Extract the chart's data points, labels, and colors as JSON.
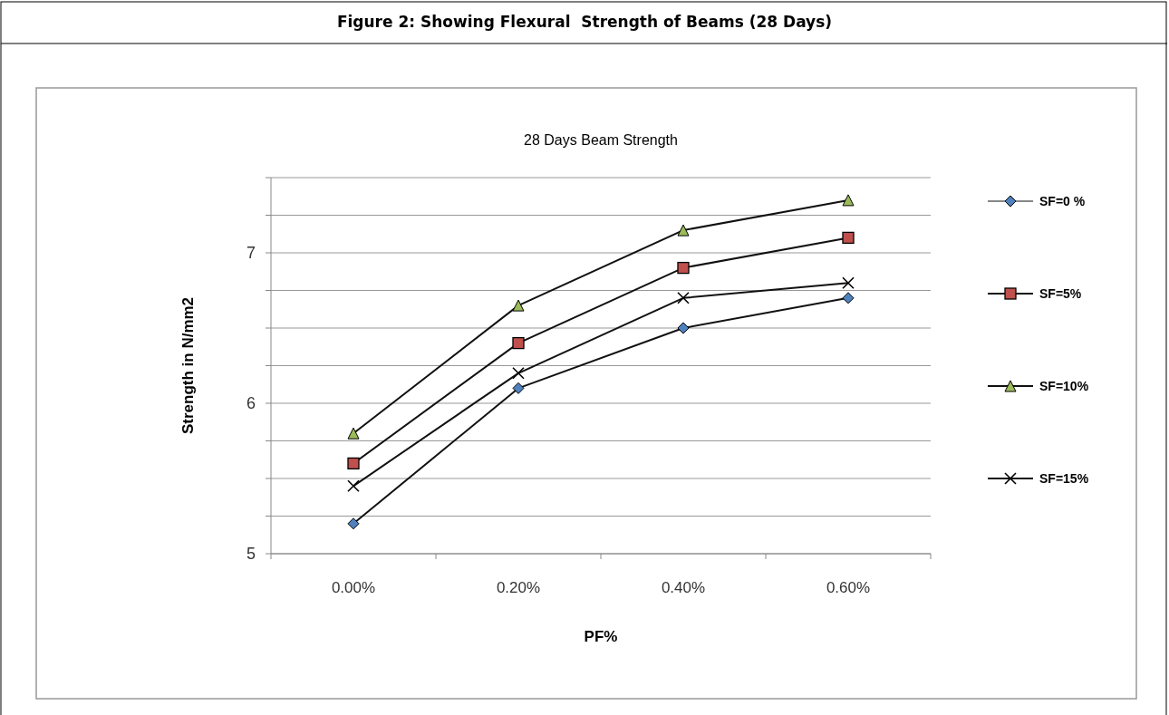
{
  "chart_data": {
    "type": "line",
    "title": "Figure 2: Showing Flexural  Strength of Beams (28 Days)",
    "subtitle": "28 Days Beam Strength",
    "xlabel": "PF%",
    "ylabel": "Strength in N/mm2",
    "categories": [
      "0.00%",
      "0.20%",
      "0.40%",
      "0.60%"
    ],
    "series": [
      {
        "name": "SF=0 %",
        "color": "#4f81bd",
        "marker": "diamond",
        "values": [
          5.2,
          6.1,
          6.5,
          6.7
        ]
      },
      {
        "name": "SF=5%",
        "color": "#c0504d",
        "marker": "square",
        "values": [
          5.6,
          6.4,
          6.9,
          7.1
        ]
      },
      {
        "name": "SF=10%",
        "color": "#9bbb59",
        "marker": "triangle",
        "values": [
          5.8,
          6.65,
          7.15,
          7.35
        ]
      },
      {
        "name": "SF=15%",
        "color": "#000000",
        "marker": "cross",
        "values": [
          5.45,
          6.2,
          6.7,
          6.8
        ]
      }
    ],
    "ylim": [
      5,
      7.5
    ],
    "yticks": [
      5,
      {
        "value": 5.25,
        "label": null
      },
      {
        "value": 5.5,
        "label": null
      },
      {
        "value": 5.75,
        "label": null
      },
      6,
      {
        "value": 6.25,
        "label": null
      },
      {
        "value": 6.5,
        "label": null
      },
      {
        "value": 6.75,
        "label": null
      },
      7,
      {
        "value": 7.25,
        "label": null
      },
      {
        "value": 7.5,
        "label": null
      }
    ],
    "grid": "y",
    "legend": "right",
    "line_style": "solid"
  }
}
